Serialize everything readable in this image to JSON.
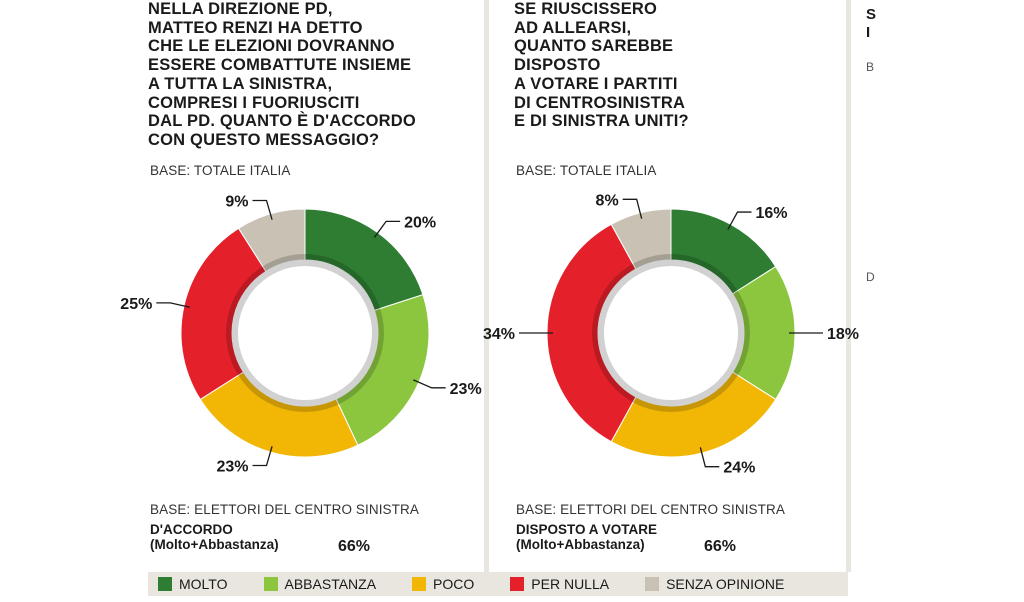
{
  "colors": {
    "molto": "#2e7d32",
    "abbastanza": "#8cc63f",
    "poco": "#f2b705",
    "per_nulla": "#e4202a",
    "senza_opinione": "#c9c1b4"
  },
  "legend": [
    {
      "key": "molto",
      "label": "MOLTO"
    },
    {
      "key": "abbastanza",
      "label": "ABBASTANZA"
    },
    {
      "key": "poco",
      "label": "POCO"
    },
    {
      "key": "per_nulla",
      "label": "PER NULLA"
    },
    {
      "key": "senza_opinione",
      "label": "SENZA OPINIONE"
    }
  ],
  "chart_data": [
    {
      "type": "pie",
      "title": "NELLA DIREZIONE PD,\nMATTEO RENZI HA DETTO\nCHE LE ELEZIONI DOVRANNO\nESSERE COMBATTUTE INSIEME\nA TUTTA LA SINISTRA,\nCOMPRESI I FUORIUSCITI\nDAL PD. QUANTO È D'ACCORDO\nCON QUESTO MESSAGGIO?",
      "base_top": "BASE: TOTALE ITALIA",
      "base_bottom": "BASE: ELETTORI DEL CENTRO SINISTRA",
      "summary_label": "D'ACCORDO\n(Molto+Abbastanza)",
      "summary_value": "66%",
      "slices": [
        {
          "key": "molto",
          "label": "MOLTO",
          "value": 20,
          "display": "20%"
        },
        {
          "key": "abbastanza",
          "label": "ABBASTANZA",
          "value": 23,
          "display": "23%"
        },
        {
          "key": "poco",
          "label": "POCO",
          "value": 23,
          "display": "23%"
        },
        {
          "key": "per_nulla",
          "label": "PER NULLA",
          "value": 25,
          "display": "25%"
        },
        {
          "key": "senza_opinione",
          "label": "SENZA OPINIONE",
          "value": 9,
          "display": "9%"
        }
      ]
    },
    {
      "type": "pie",
      "title": "SE RIUSCISSERO\nAD ALLEARSI,\nQUANTO SAREBBE\nDISPOSTO\nA VOTARE I PARTITI\nDI CENTROSINISTRA\nE DI SINISTRA UNITI?",
      "base_top": "BASE: TOTALE ITALIA",
      "base_bottom": "BASE: ELETTORI DEL CENTRO SINISTRA",
      "summary_label": "DISPOSTO A VOTARE\n(Molto+Abbastanza)",
      "summary_value": "66%",
      "slices": [
        {
          "key": "molto",
          "label": "MOLTO",
          "value": 16,
          "display": "16%"
        },
        {
          "key": "abbastanza",
          "label": "ABBASTANZA",
          "value": 18,
          "display": "18%"
        },
        {
          "key": "poco",
          "label": "POCO",
          "value": 24,
          "display": "24%"
        },
        {
          "key": "per_nulla",
          "label": "PER NULLA",
          "value": 34,
          "display": "34%"
        },
        {
          "key": "senza_opinione",
          "label": "SENZA OPINIONE",
          "value": 8,
          "display": "8%"
        }
      ]
    }
  ],
  "edge_fragments": [
    "S",
    "I",
    "B",
    "D"
  ]
}
